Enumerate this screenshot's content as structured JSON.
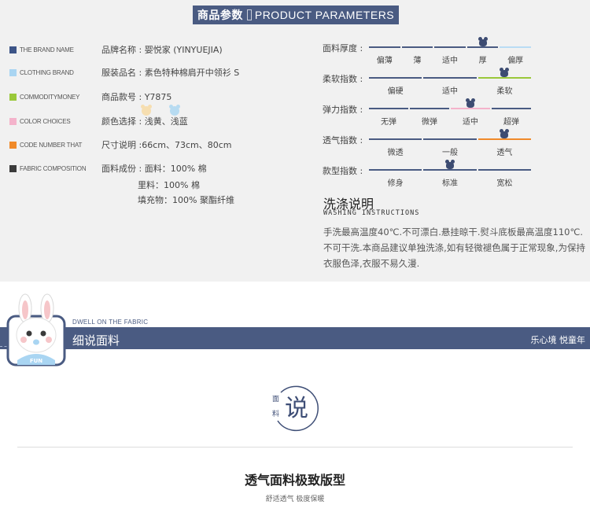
{
  "header": {
    "title_cn": "商品参数",
    "title_en": "PRODUCT PARAMETERS"
  },
  "specs": [
    {
      "en": "THE BRAND NAME",
      "cn": "品牌名称 : 婴悦家 (YINYUEJIA)",
      "color": "#3c5487"
    },
    {
      "en": "CLOTHING BRAND",
      "cn": "服装品名 : 素色特种棉肩开中领衫 S",
      "color": "#a9d5f2"
    },
    {
      "en": "COMMODITYMONEY",
      "cn": "商品款号 : Y7875",
      "color": "#9ac83a"
    },
    {
      "en": "COLOR CHOICES",
      "cn": "颜色选择 : 浅黄、浅蓝",
      "color": "#f4b3cb"
    },
    {
      "en": "CODE NUMBER THAT",
      "cn": "尺寸说明 :66cm、73cm、80cm",
      "color": "#f08a2a"
    },
    {
      "en": "FABRIC COMPOSITION",
      "cn": "面料成份 : 面料：100% 棉",
      "color": "#3b3b3b"
    }
  ],
  "fabric_extra": [
    "里料：100% 棉",
    "填充物：100% 聚酯纤维"
  ],
  "color_icons": [
    "light-yellow-bear-icon",
    "light-blue-bear-icon"
  ],
  "scales": [
    {
      "label": "面料厚度 :",
      "ticks": [
        "偏薄",
        "薄",
        "适中",
        "厚",
        "偏厚"
      ],
      "selected": 3,
      "highlight": 4,
      "highlight_color": "#b9dcf4"
    },
    {
      "label": "柔软指数 :",
      "ticks": [
        "偏硬",
        "适中",
        "柔软"
      ],
      "selected": 2,
      "highlight": 2,
      "highlight_color": "#9ac83a"
    },
    {
      "label": "弹力指数 :",
      "ticks": [
        "无弹",
        "微弹",
        "适中",
        "超弹"
      ],
      "selected": 2,
      "highlight": 2,
      "highlight_color": "#f4b3cb"
    },
    {
      "label": "透气指数 :",
      "ticks": [
        "微透",
        "一般",
        "透气"
      ],
      "selected": 2,
      "highlight": 2,
      "highlight_color": "#f08a2a"
    },
    {
      "label": "款型指数 :",
      "ticks": [
        "修身",
        "标准",
        "宽松"
      ],
      "selected": 1,
      "highlight": -1,
      "highlight_color": "#3d4c72"
    }
  ],
  "washing": {
    "title": "洗涤说明",
    "subtitle": "WASHING INSTRUCTIONS",
    "body": "手洗最高温度40℃.不可漂白.悬挂晾干.熨斗底板最高温度110℃.不可干洗.本商品建议单独洗涤,如有轻微褪色属于正常现象,为保持衣服色泽,衣服不易久漫."
  },
  "banner": {
    "subtitle": "DWELL ON THE FABRIC",
    "title": "细说面料",
    "right": "乐心境  悦童年",
    "mascot_text": "FUN"
  },
  "badge": {
    "small_1": "面",
    "small_2": "料",
    "big": "说"
  },
  "feature": {
    "title": "透气面料极致版型",
    "subtitle": "舒适透气  极度保暖"
  }
}
